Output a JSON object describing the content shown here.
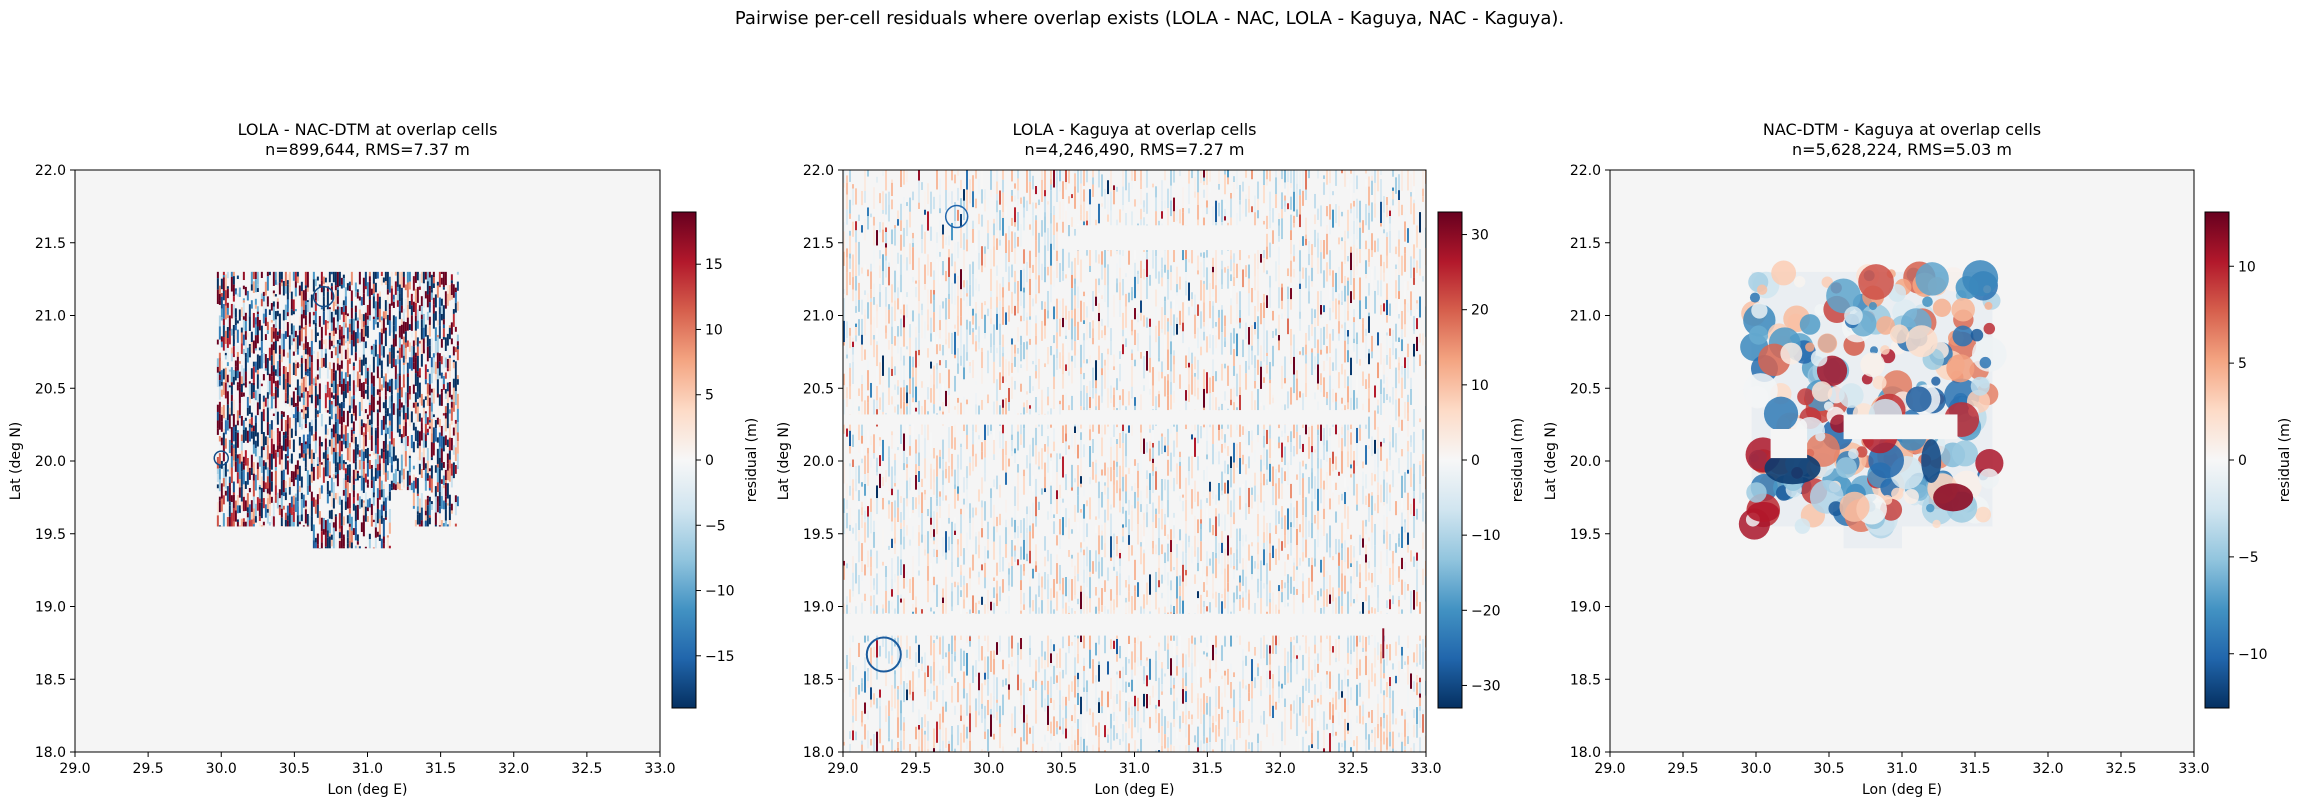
{
  "suptitle": "Pairwise per-cell residuals where overlap exists (LOLA - NAC, LOLA - Kaguya, NAC - Kaguya).",
  "colormap": "RdBu_r",
  "background_color": "#f5f5f5",
  "chart_data": [
    {
      "type": "heatmap",
      "title": "LOLA - NAC-DTM at overlap cells",
      "subtitle": "n=899,644, RMS=7.37 m",
      "xlabel": "Lon (deg E)",
      "ylabel": "Lat (deg N)",
      "xlim": [
        29.0,
        33.0
      ],
      "ylim": [
        18.0,
        22.0
      ],
      "xticks": [
        "29.0",
        "29.5",
        "30.0",
        "30.5",
        "31.0",
        "31.5",
        "32.0",
        "32.5",
        "33.0"
      ],
      "yticks": [
        "18.0",
        "18.5",
        "19.0",
        "19.5",
        "20.0",
        "20.5",
        "21.0",
        "21.5",
        "22.0"
      ],
      "coverage": {
        "lon": [
          29.97,
          31.62
        ],
        "lat": [
          19.4,
          21.3
        ]
      },
      "pattern": "stripes",
      "colorbar": {
        "label": "residual (m)",
        "range": [
          -19,
          19
        ],
        "ticks": [
          "15",
          "10",
          "5",
          "0",
          "−5",
          "−10",
          "−15"
        ]
      }
    },
    {
      "type": "heatmap",
      "title": "LOLA - Kaguya at overlap cells",
      "subtitle": "n=4,246,490, RMS=7.27 m",
      "xlabel": "Lon (deg E)",
      "ylabel": "Lat (deg N)",
      "xlim": [
        29.0,
        33.0
      ],
      "ylim": [
        18.0,
        22.0
      ],
      "xticks": [
        "29.0",
        "29.5",
        "30.0",
        "30.5",
        "31.0",
        "31.5",
        "32.0",
        "32.5",
        "33.0"
      ],
      "yticks": [
        "18.0",
        "18.5",
        "19.0",
        "19.5",
        "20.0",
        "20.5",
        "21.0",
        "21.5",
        "22.0"
      ],
      "coverage": {
        "lon": [
          29.0,
          33.0
        ],
        "lat": [
          18.0,
          22.0
        ]
      },
      "pattern": "sparse-stripes",
      "colorbar": {
        "label": "residual (m)",
        "range": [
          -33,
          33
        ],
        "ticks": [
          "30",
          "20",
          "10",
          "0",
          "−10",
          "−20",
          "−30"
        ]
      }
    },
    {
      "type": "heatmap",
      "title": "NAC-DTM - Kaguya at overlap cells",
      "subtitle": "n=5,628,224, RMS=5.03 m",
      "xlabel": "Lon (deg E)",
      "ylabel": "Lat (deg N)",
      "xlim": [
        29.0,
        33.0
      ],
      "ylim": [
        18.0,
        22.0
      ],
      "xticks": [
        "29.0",
        "29.5",
        "30.0",
        "30.5",
        "31.0",
        "31.5",
        "32.0",
        "32.5",
        "33.0"
      ],
      "yticks": [
        "18.0",
        "18.5",
        "19.0",
        "19.5",
        "20.0",
        "20.5",
        "21.0",
        "21.5",
        "22.0"
      ],
      "coverage": {
        "lon": [
          29.97,
          31.62
        ],
        "lat": [
          19.4,
          21.3
        ]
      },
      "pattern": "blobs",
      "colorbar": {
        "label": "residual (m)",
        "range": [
          -12.8,
          12.8
        ],
        "ticks": [
          "10",
          "5",
          "0",
          "−5",
          "−10"
        ]
      }
    }
  ]
}
